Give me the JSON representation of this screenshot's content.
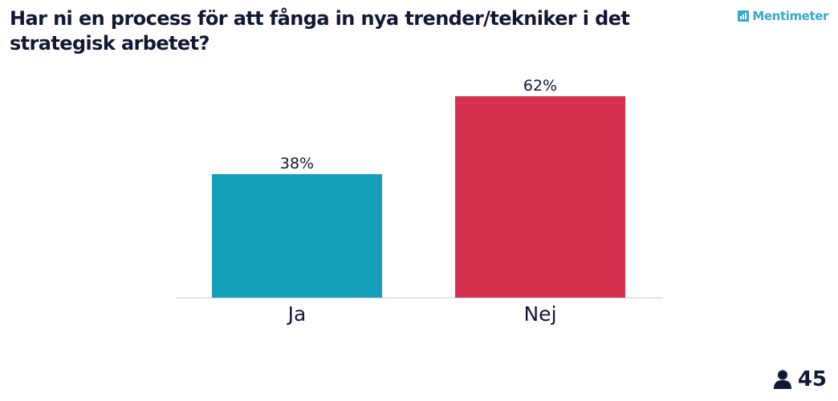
{
  "question": {
    "title": "Har ni en process för att fånga in nya trender/tekniker i det strategisk arbetet?"
  },
  "brand": {
    "name": "Mentimeter",
    "color": "#3aa8d0"
  },
  "participants": {
    "icon": "user-icon",
    "count": "45"
  },
  "chart_data": {
    "type": "bar",
    "categories": [
      "Ja",
      "Nej"
    ],
    "values": [
      38,
      62
    ],
    "value_labels": [
      "38%",
      "62%"
    ],
    "colors": [
      "#149db9",
      "#d4314e"
    ],
    "ylim": [
      0,
      62
    ],
    "grid": false,
    "title": "",
    "xlabel": "",
    "ylabel": ""
  }
}
